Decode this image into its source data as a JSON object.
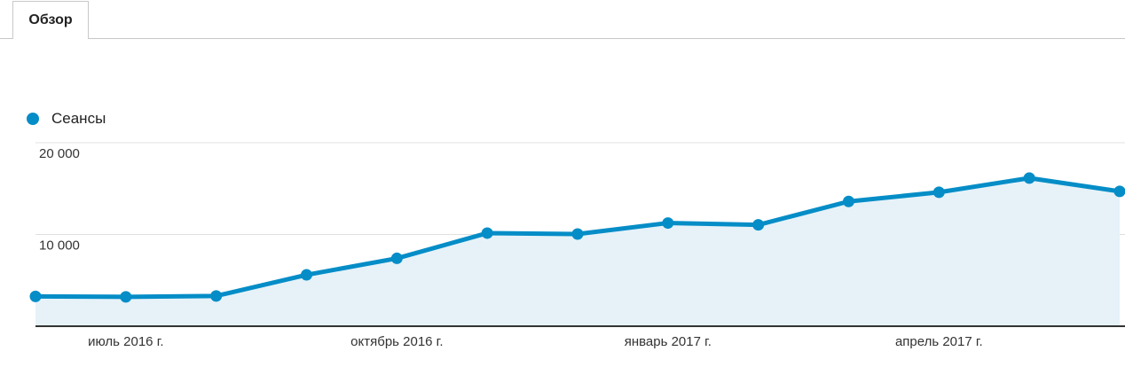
{
  "tabs": [
    {
      "label": "Обзор"
    }
  ],
  "colors": {
    "series": "#058dc7",
    "area": "#e6f2f8",
    "grid": "#e0e0e0",
    "axis": "#333333"
  },
  "chart_data": {
    "type": "area",
    "title": "",
    "xlabel": "",
    "ylabel": "",
    "legend": "top-left",
    "grid": true,
    "ylim": [
      0,
      20000
    ],
    "y_ticks": [
      {
        "value": 10000,
        "label": "10 000"
      },
      {
        "value": 20000,
        "label": "20 000"
      }
    ],
    "x_tick_labels": [
      {
        "label": "июль 2016 г.",
        "at": "2016-07"
      },
      {
        "label": "октябрь 2016 г.",
        "at": "2016-10"
      },
      {
        "label": "январь 2017 г.",
        "at": "2017-01"
      },
      {
        "label": "апрель 2017 г.",
        "at": "2017-04"
      }
    ],
    "x": [
      "2016-06",
      "2016-07",
      "2016-08",
      "2016-09",
      "2016-10",
      "2016-11",
      "2016-12",
      "2017-01",
      "2017-02",
      "2017-03",
      "2017-04",
      "2017-05",
      "2017-06"
    ],
    "series": [
      {
        "name": "Сеансы",
        "values": [
          3250,
          3200,
          3300,
          5600,
          7400,
          10150,
          10050,
          11250,
          11050,
          13600,
          14600,
          16150,
          14700
        ]
      }
    ]
  }
}
